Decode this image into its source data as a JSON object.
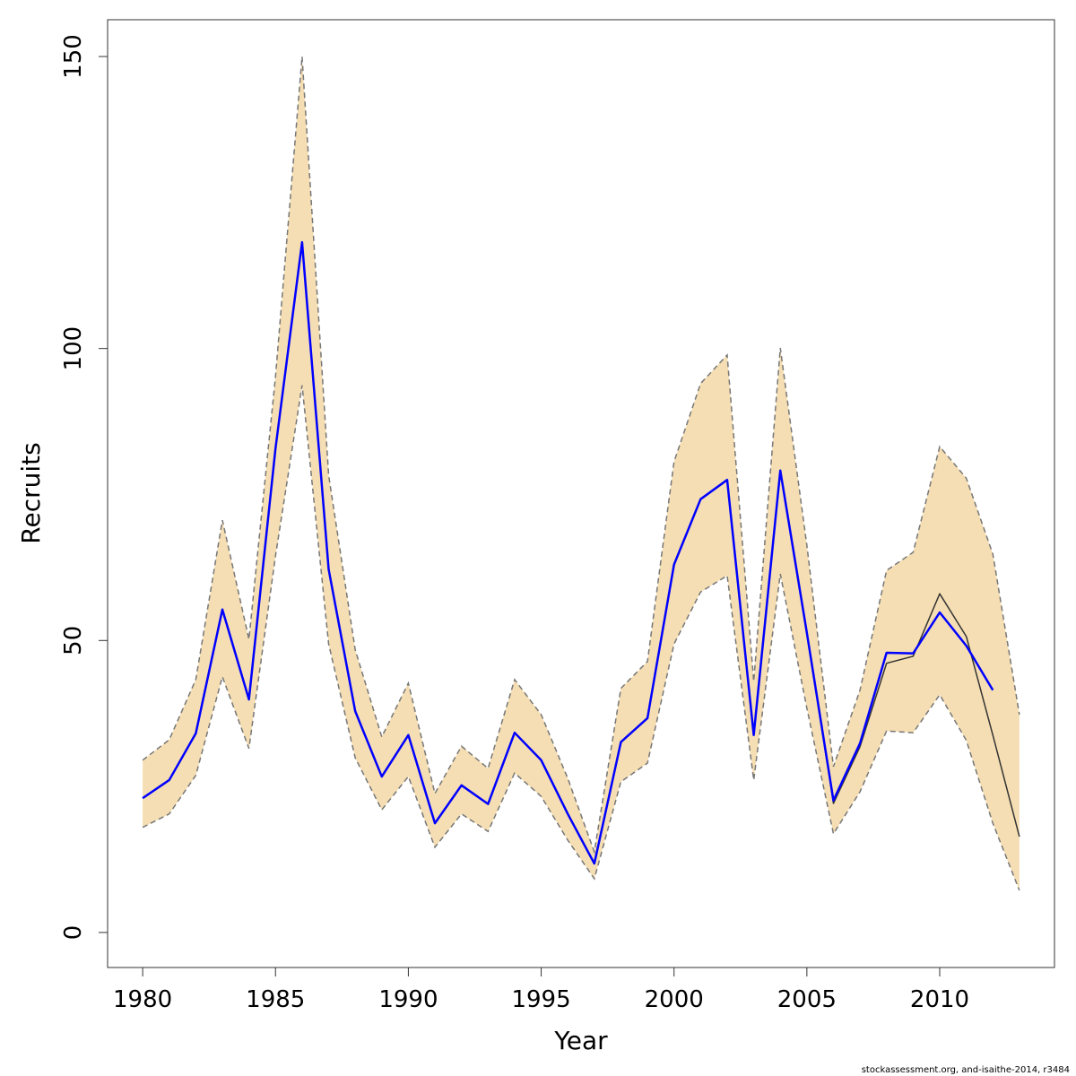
{
  "chart_data": {
    "type": "line",
    "xlabel": "Year",
    "ylabel": "Recruits",
    "footer": "stockassessment.org, and-isaithe-2014, r3484",
    "x": [
      1980,
      1981,
      1982,
      1983,
      1984,
      1985,
      1986,
      1987,
      1988,
      1989,
      1990,
      1991,
      1992,
      1993,
      1994,
      1995,
      1996,
      1997,
      1998,
      1999,
      2000,
      2001,
      2002,
      2003,
      2004,
      2005,
      2006,
      2007,
      2008,
      2009,
      2010,
      2011,
      2012,
      2013
    ],
    "band": {
      "color": "#f5deb3",
      "edge_color": "#777777",
      "upper": [
        29.5,
        33.0,
        43.3,
        70.6,
        50.2,
        95.2,
        150,
        78.3,
        48.4,
        33.5,
        42.7,
        23.8,
        31.9,
        28.1,
        43.3,
        37.3,
        26.4,
        13.8,
        41.8,
        46.4,
        80.6,
        94.0,
        98.9,
        43.0,
        100.1,
        66.3,
        28.4,
        41.5,
        62.0,
        65.1,
        83.2,
        77.8,
        64.8,
        37.3
      ],
      "lower": [
        18.0,
        20.3,
        26.9,
        43.8,
        31.5,
        64.5,
        93.7,
        49.4,
        29.9,
        21.0,
        26.7,
        14.6,
        20.3,
        17.3,
        27.3,
        23.3,
        15.8,
        9.2,
        25.8,
        29.0,
        49.4,
        58.3,
        61.1,
        26.1,
        61.4,
        38.4,
        16.9,
        24.1,
        34.5,
        34.2,
        40.7,
        32.9,
        18.7,
        7.2
      ]
    },
    "series": [
      {
        "color": "#333333",
        "width": 1.5,
        "values": [
          23.0,
          26.1,
          34.1,
          55.3,
          39.9,
          82.9,
          118.2,
          62.2,
          37.9,
          26.7,
          33.8,
          18.7,
          25.2,
          22.0,
          34.2,
          29.5,
          20.3,
          11.8,
          32.6,
          36.7,
          63.0,
          74.2,
          77.5,
          33.8,
          79.1,
          51.3,
          22.1,
          31.8,
          46.1,
          47.3,
          58.0,
          50.7,
          33.8,
          16.4
        ]
      },
      {
        "color": "#0000ff",
        "width": 2.5,
        "values": [
          23.0,
          26.1,
          34.1,
          55.3,
          39.9,
          82.9,
          118.2,
          62.2,
          37.9,
          26.7,
          33.8,
          18.7,
          25.2,
          22.0,
          34.2,
          29.5,
          20.3,
          11.8,
          32.6,
          36.7,
          63.0,
          74.2,
          77.5,
          33.8,
          79.1,
          51.3,
          22.6,
          32.4,
          47.9,
          47.8,
          54.8,
          49.1,
          41.5,
          null
        ]
      }
    ],
    "xlim": [
      1978.68,
      2014.32
    ],
    "ylim": [
      -6,
      156.3
    ],
    "xticks": [
      1980,
      1985,
      1990,
      1995,
      2000,
      2005,
      2010
    ],
    "yticks": [
      0,
      50,
      100,
      150
    ]
  }
}
